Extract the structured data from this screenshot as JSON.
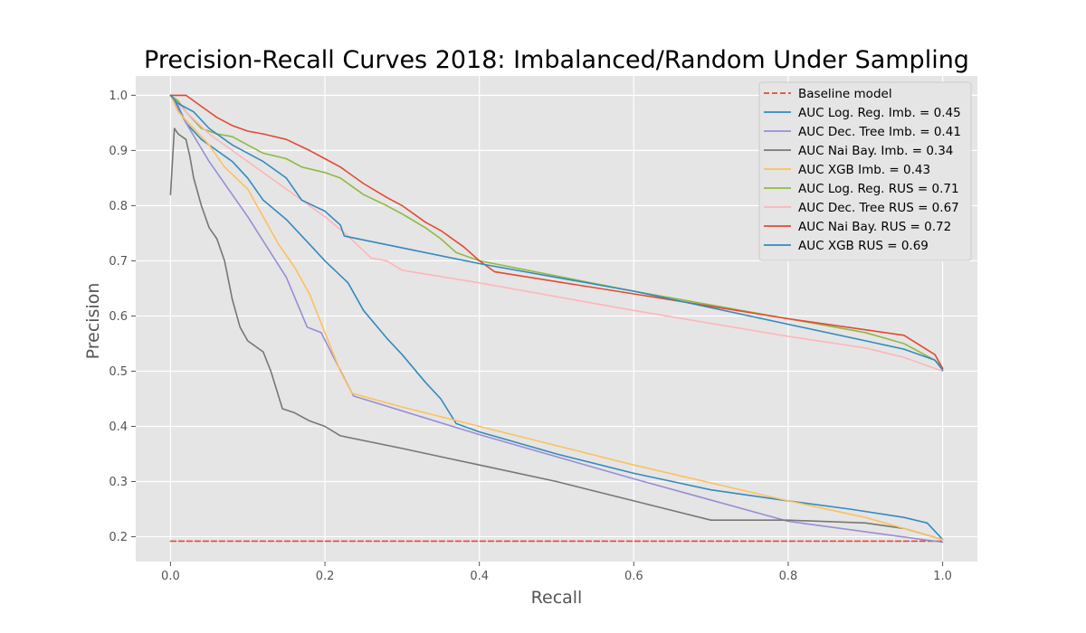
{
  "chart_data": {
    "type": "line",
    "title": "Precision-Recall Curves 2018: Imbalanced/Random Under Sampling",
    "xlabel": "Recall",
    "ylabel": "Precision",
    "xlim": [
      -0.045,
      1.045
    ],
    "ylim": [
      0.155,
      1.035
    ],
    "xticks": [
      0.0,
      0.2,
      0.4,
      0.6,
      0.8,
      1.0
    ],
    "xtick_labels": [
      "0.0",
      "0.2",
      "0.4",
      "0.6",
      "0.8",
      "1.0"
    ],
    "yticks": [
      0.2,
      0.3,
      0.4,
      0.5,
      0.6,
      0.7,
      0.8,
      0.9,
      1.0
    ],
    "ytick_labels": [
      "0.2",
      "0.3",
      "0.4",
      "0.5",
      "0.6",
      "0.7",
      "0.8",
      "0.9",
      "1.0"
    ],
    "grid": true,
    "background": "#e5e5e5",
    "legend_position": "top-right",
    "series": [
      {
        "name": "Baseline model",
        "color": "#E24A33",
        "dashed": true,
        "points": [
          [
            0.0,
            0.192
          ],
          [
            1.0,
            0.192
          ]
        ]
      },
      {
        "name": "AUC Log. Reg. Imb. = 0.45",
        "color": "#348ABD",
        "dashed": false,
        "points": [
          [
            0.0,
            1.0
          ],
          [
            0.01,
            0.98
          ],
          [
            0.02,
            0.95
          ],
          [
            0.04,
            0.92
          ],
          [
            0.06,
            0.9
          ],
          [
            0.08,
            0.88
          ],
          [
            0.1,
            0.85
          ],
          [
            0.12,
            0.81
          ],
          [
            0.15,
            0.775
          ],
          [
            0.18,
            0.73
          ],
          [
            0.2,
            0.7
          ],
          [
            0.23,
            0.66
          ],
          [
            0.25,
            0.61
          ],
          [
            0.28,
            0.56
          ],
          [
            0.3,
            0.53
          ],
          [
            0.33,
            0.48
          ],
          [
            0.35,
            0.45
          ],
          [
            0.37,
            0.405
          ],
          [
            0.4,
            0.39
          ],
          [
            0.5,
            0.35
          ],
          [
            0.6,
            0.315
          ],
          [
            0.7,
            0.285
          ],
          [
            0.8,
            0.265
          ],
          [
            0.88,
            0.25
          ],
          [
            0.95,
            0.235
          ],
          [
            0.98,
            0.225
          ],
          [
            1.0,
            0.195
          ]
        ]
      },
      {
        "name": "AUC Dec. Tree Imb. = 0.41",
        "color": "#988ED5",
        "dashed": false,
        "points": [
          [
            0.0,
            1.0
          ],
          [
            0.02,
            0.95
          ],
          [
            0.05,
            0.88
          ],
          [
            0.1,
            0.78
          ],
          [
            0.15,
            0.67
          ],
          [
            0.177,
            0.58
          ],
          [
            0.195,
            0.57
          ],
          [
            0.237,
            0.455
          ],
          [
            0.4,
            0.385
          ],
          [
            0.6,
            0.305
          ],
          [
            0.8,
            0.228
          ],
          [
            1.0,
            0.19
          ]
        ]
      },
      {
        "name": "AUC Nai Bay. Imb. = 0.34",
        "color": "#777777",
        "dashed": false,
        "points": [
          [
            0.0,
            0.82
          ],
          [
            0.005,
            0.94
          ],
          [
            0.01,
            0.93
          ],
          [
            0.02,
            0.92
          ],
          [
            0.025,
            0.89
          ],
          [
            0.03,
            0.85
          ],
          [
            0.04,
            0.8
          ],
          [
            0.05,
            0.76
          ],
          [
            0.06,
            0.74
          ],
          [
            0.07,
            0.7
          ],
          [
            0.08,
            0.63
          ],
          [
            0.09,
            0.58
          ],
          [
            0.1,
            0.555
          ],
          [
            0.12,
            0.535
          ],
          [
            0.13,
            0.5
          ],
          [
            0.145,
            0.432
          ],
          [
            0.16,
            0.425
          ],
          [
            0.18,
            0.41
          ],
          [
            0.2,
            0.4
          ],
          [
            0.22,
            0.383
          ],
          [
            0.3,
            0.36
          ],
          [
            0.4,
            0.33
          ],
          [
            0.5,
            0.3
          ],
          [
            0.6,
            0.265
          ],
          [
            0.7,
            0.23
          ],
          [
            0.8,
            0.23
          ],
          [
            0.9,
            0.225
          ],
          [
            0.95,
            0.215
          ],
          [
            1.0,
            0.195
          ]
        ]
      },
      {
        "name": "AUC XGB Imb. = 0.43",
        "color": "#FBC15E",
        "dashed": false,
        "points": [
          [
            0.0,
            1.0
          ],
          [
            0.01,
            0.97
          ],
          [
            0.03,
            0.94
          ],
          [
            0.05,
            0.91
          ],
          [
            0.07,
            0.87
          ],
          [
            0.1,
            0.83
          ],
          [
            0.12,
            0.78
          ],
          [
            0.14,
            0.73
          ],
          [
            0.16,
            0.69
          ],
          [
            0.18,
            0.64
          ],
          [
            0.2,
            0.57
          ],
          [
            0.22,
            0.5
          ],
          [
            0.235,
            0.46
          ],
          [
            0.3,
            0.435
          ],
          [
            0.4,
            0.4
          ],
          [
            0.6,
            0.33
          ],
          [
            0.8,
            0.265
          ],
          [
            0.9,
            0.235
          ],
          [
            1.0,
            0.195
          ]
        ]
      },
      {
        "name": "AUC Log. Reg. RUS = 0.71",
        "color": "#8EBA42",
        "dashed": false,
        "points": [
          [
            0.0,
            1.0
          ],
          [
            0.01,
            0.99
          ],
          [
            0.02,
            0.97
          ],
          [
            0.04,
            0.94
          ],
          [
            0.06,
            0.93
          ],
          [
            0.08,
            0.925
          ],
          [
            0.1,
            0.91
          ],
          [
            0.12,
            0.895
          ],
          [
            0.15,
            0.885
          ],
          [
            0.17,
            0.87
          ],
          [
            0.2,
            0.86
          ],
          [
            0.22,
            0.85
          ],
          [
            0.25,
            0.82
          ],
          [
            0.28,
            0.8
          ],
          [
            0.3,
            0.785
          ],
          [
            0.33,
            0.76
          ],
          [
            0.35,
            0.74
          ],
          [
            0.37,
            0.715
          ],
          [
            0.4,
            0.7
          ],
          [
            0.6,
            0.645
          ],
          [
            0.8,
            0.595
          ],
          [
            0.9,
            0.57
          ],
          [
            0.95,
            0.55
          ],
          [
            0.99,
            0.52
          ],
          [
            1.0,
            0.505
          ]
        ]
      },
      {
        "name": "AUC Dec. Tree RUS = 0.67",
        "color": "#FFB5B8",
        "dashed": false,
        "points": [
          [
            0.0,
            1.0
          ],
          [
            0.02,
            0.97
          ],
          [
            0.05,
            0.93
          ],
          [
            0.1,
            0.88
          ],
          [
            0.15,
            0.83
          ],
          [
            0.2,
            0.78
          ],
          [
            0.23,
            0.745
          ],
          [
            0.26,
            0.705
          ],
          [
            0.28,
            0.7
          ],
          [
            0.3,
            0.683
          ],
          [
            0.4,
            0.66
          ],
          [
            0.6,
            0.61
          ],
          [
            0.8,
            0.563
          ],
          [
            0.9,
            0.542
          ],
          [
            0.95,
            0.525
          ],
          [
            1.0,
            0.5
          ]
        ]
      },
      {
        "name": "AUC Nai Bay. RUS = 0.72",
        "color": "#E24A33",
        "dashed": false,
        "points": [
          [
            0.0,
            1.0
          ],
          [
            0.02,
            1.0
          ],
          [
            0.04,
            0.98
          ],
          [
            0.06,
            0.96
          ],
          [
            0.08,
            0.945
          ],
          [
            0.1,
            0.935
          ],
          [
            0.12,
            0.93
          ],
          [
            0.15,
            0.92
          ],
          [
            0.18,
            0.9
          ],
          [
            0.2,
            0.885
          ],
          [
            0.22,
            0.87
          ],
          [
            0.25,
            0.84
          ],
          [
            0.28,
            0.815
          ],
          [
            0.3,
            0.8
          ],
          [
            0.33,
            0.77
          ],
          [
            0.35,
            0.755
          ],
          [
            0.38,
            0.725
          ],
          [
            0.4,
            0.7
          ],
          [
            0.42,
            0.68
          ],
          [
            0.6,
            0.64
          ],
          [
            0.8,
            0.595
          ],
          [
            0.9,
            0.575
          ],
          [
            0.95,
            0.565
          ],
          [
            0.99,
            0.53
          ],
          [
            1.0,
            0.505
          ]
        ]
      },
      {
        "name": "AUC XGB RUS = 0.69",
        "color": "#348ABD",
        "dashed": false,
        "points": [
          [
            0.0,
            1.0
          ],
          [
            0.01,
            0.985
          ],
          [
            0.03,
            0.97
          ],
          [
            0.05,
            0.94
          ],
          [
            0.08,
            0.91
          ],
          [
            0.1,
            0.895
          ],
          [
            0.12,
            0.88
          ],
          [
            0.15,
            0.85
          ],
          [
            0.17,
            0.81
          ],
          [
            0.2,
            0.79
          ],
          [
            0.22,
            0.765
          ],
          [
            0.225,
            0.745
          ],
          [
            0.4,
            0.695
          ],
          [
            0.6,
            0.645
          ],
          [
            0.8,
            0.585
          ],
          [
            0.9,
            0.555
          ],
          [
            0.95,
            0.54
          ],
          [
            0.99,
            0.52
          ],
          [
            1.0,
            0.502
          ]
        ]
      }
    ]
  }
}
